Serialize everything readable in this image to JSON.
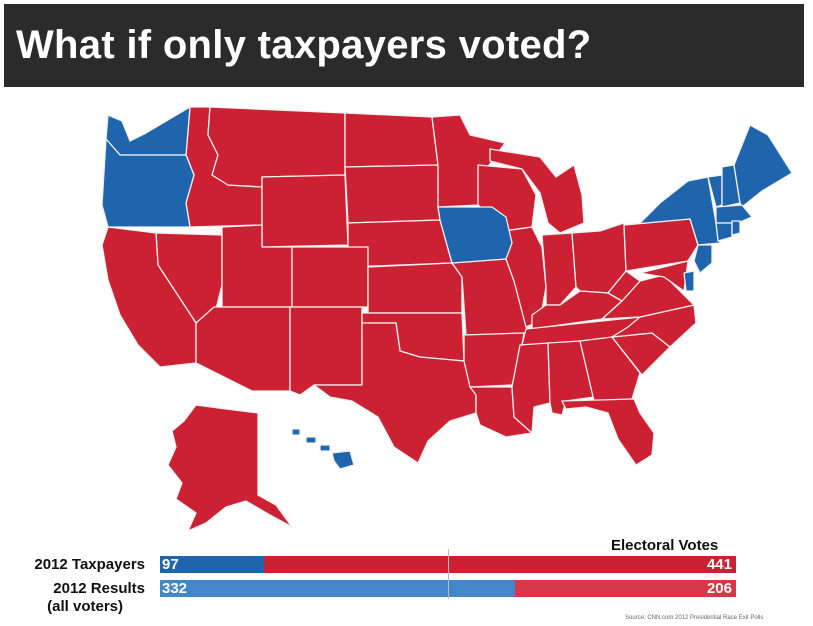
{
  "title": "What if only taxpayers voted?",
  "colors": {
    "red": "#cc2033",
    "blue": "#1f65ad",
    "blue_light": "#4387c9",
    "red_light": "#d8374a",
    "title_bg": "#2b2b2b"
  },
  "map": {
    "blue_states": [
      "Washington",
      "Oregon",
      "Iowa",
      "New York",
      "Vermont",
      "New Hampshire",
      "Maine",
      "Massachusetts",
      "Rhode Island",
      "Connecticut",
      "New Jersey",
      "Delaware",
      "Hawaii"
    ],
    "red_states": [
      "all other states"
    ]
  },
  "legend": {
    "title": "Electoral Votes",
    "rows": [
      {
        "label": "2012 Taxpayers",
        "blue_value": "97",
        "red_value": "441"
      },
      {
        "label": "2012 Results",
        "sublabel": "(all voters)",
        "blue_value": "332",
        "red_value": "206"
      }
    ]
  },
  "source": "Source: CNN.com 2012 Presidential Race Exit Polls"
}
